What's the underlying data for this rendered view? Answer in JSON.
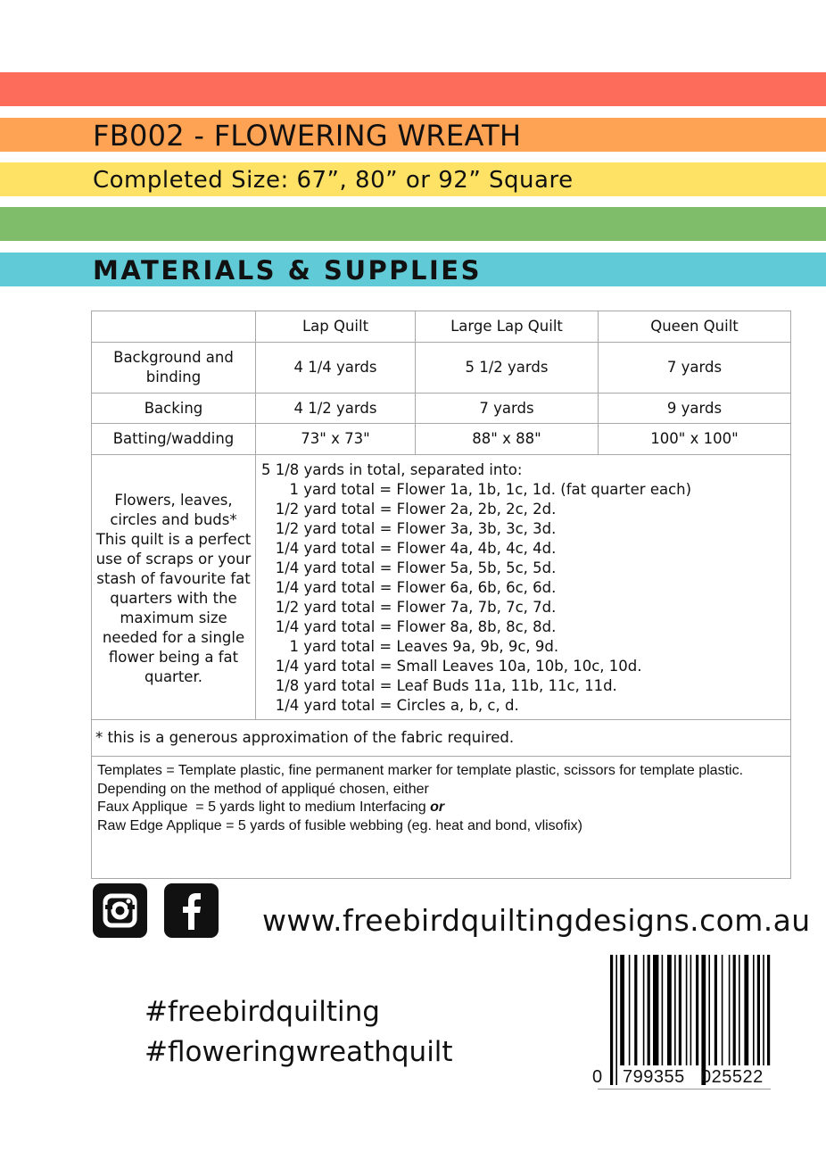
{
  "header": {
    "title": "FB002 - FLOWERING WREATH",
    "size": "Completed Size: 67”, 80” or 92” Square",
    "section": "MATERIALS & SUPPLIES",
    "stripe_colors": [
      "#fd6b5b",
      "#fea254",
      "#fee266",
      "#80bd6a",
      "#60cad7"
    ]
  },
  "table": {
    "headers": [
      "",
      "Lap Quilt",
      "Large Lap Quilt",
      "Queen Quilt"
    ],
    "rows": [
      [
        "Background and binding",
        "4 1/4 yards",
        "5 1/2 yards",
        "7 yards"
      ],
      [
        "Backing",
        "4 1/2 yards",
        "7 yards",
        "9 yards"
      ],
      [
        "Batting/wadding",
        "73\" x 73\"",
        "88\" x 88\"",
        "100\" x 100\""
      ]
    ],
    "flowers_label": "Flowers, leaves, circles and buds* This quilt is a perfect use of scraps or your stash of favourite fat quarters with the maximum size needed for a single flower being a fat quarter.",
    "flowers_list": [
      "5 1/8 yards in total, separated into:",
      "      1 yard total = Flower 1a, 1b, 1c, 1d. (fat quarter each)",
      "   1/2 yard total = Flower 2a, 2b, 2c, 2d.",
      "   1/2 yard total = Flower 3a, 3b, 3c, 3d.",
      "   1/4 yard total = Flower 4a, 4b, 4c, 4d.",
      "   1/4 yard total = Flower 5a, 5b, 5c, 5d.",
      "   1/4 yard total = Flower 6a, 6b, 6c, 6d.",
      "   1/2 yard total = Flower 7a, 7b, 7c, 7d.",
      "   1/4 yard total = Flower 8a, 8b, 8c, 8d.",
      "      1 yard total = Leaves 9a, 9b, 9c, 9d.",
      "   1/4 yard total = Small Leaves 10a, 10b, 10c, 10d.",
      "   1/8 yard total = Leaf Buds 11a, 11b, 11c, 11d.",
      "   1/4 yard total = Circles a, b, c, d."
    ],
    "note": "* this is a generous approximation of the fabric required.",
    "templates": [
      "Templates = Template plastic, fine permanent marker for template plastic, scissors for template plastic.",
      "Depending on the method of appliqué chosen, either",
      "Faux Applique  = 5 yards light to medium Interfacing ",
      "or",
      "Raw Edge Applique = 5 yards of fusible webbing (eg. heat and bond, vlisofix)"
    ]
  },
  "footer": {
    "social_icons": [
      "instagram-icon",
      "facebook-icon"
    ],
    "website": "www.freebirdquiltingdesigns.com.au",
    "hashtags": [
      "#freebirdquilting",
      "#floweringwreathquilt"
    ],
    "barcode": {
      "first": "0",
      "left": "799355",
      "right": "025522"
    }
  }
}
